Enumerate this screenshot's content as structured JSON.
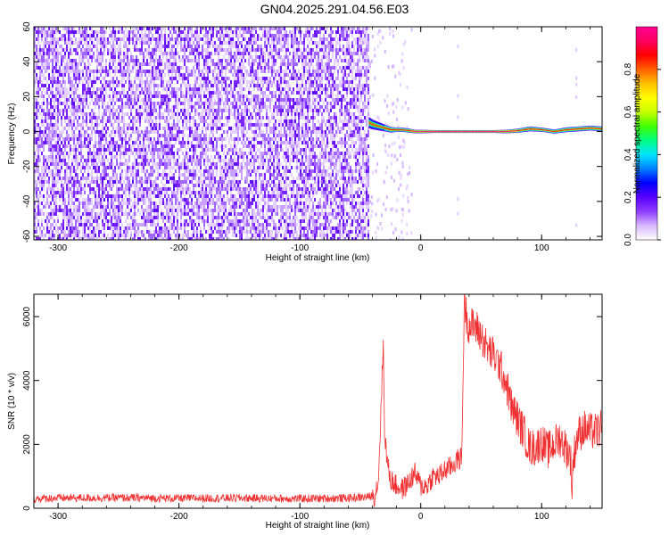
{
  "title": "GN04.2025.291.04.56.E03",
  "chart_data": [
    {
      "type": "heatmap",
      "xlabel": "Height of straight line (km)",
      "ylabel": "Frequency (Hz)",
      "xlim": [
        -320,
        150
      ],
      "ylim": [
        -62,
        60
      ],
      "x_ticks": [
        -300,
        -200,
        -100,
        0,
        100
      ],
      "y_ticks": [
        -60,
        -40,
        -20,
        0,
        20,
        40,
        60
      ],
      "noise_region_x": [
        -320,
        -43
      ],
      "signal_track": {
        "x": [
          -43,
          -40,
          -35,
          -30,
          -25,
          -20,
          -15,
          -10,
          -5,
          0,
          10,
          20,
          40,
          60,
          70,
          80,
          90,
          100,
          110,
          120,
          130,
          140,
          150
        ],
        "freq": [
          5,
          4,
          3,
          2,
          1,
          1,
          1,
          0.5,
          0,
          0,
          0,
          0,
          0,
          0,
          0,
          0.5,
          1.5,
          1,
          0,
          1,
          1.5,
          2,
          1.5
        ],
        "width_hz": [
          8,
          7,
          6,
          5,
          4,
          3,
          3,
          3,
          2.5,
          2.5,
          2,
          2,
          2,
          2,
          2.5,
          3,
          3.5,
          3,
          3,
          3.5,
          3.5,
          3.5,
          3.5
        ]
      },
      "colorbar": {
        "label": "Normalized spectral amplitude",
        "range": [
          0.0,
          1.0
        ],
        "ticks": [
          "0.0",
          "0.2",
          "0.4",
          "0.6",
          "0.8"
        ],
        "colors": [
          "#ffffff",
          "#d9b8ff",
          "#8f3dff",
          "#5a00ff",
          "#0000ff",
          "#0080ff",
          "#00e5ff",
          "#00ff80",
          "#40ff00",
          "#c8ff00",
          "#ffff00",
          "#ffc000",
          "#ff6000",
          "#ff0000",
          "#ff0060",
          "#ff0090"
        ]
      }
    },
    {
      "type": "line",
      "xlabel": "Height of straight line (km)",
      "ylabel": "SNR (10 * v/v)",
      "xlim": [
        -320,
        150
      ],
      "ylim": [
        0,
        6700
      ],
      "x_ticks": [
        -300,
        -200,
        -100,
        0,
        100
      ],
      "y_ticks": [
        0,
        2000,
        4000,
        6000
      ],
      "color": "#f03030",
      "series": [
        {
          "x": [
            -320,
            -300,
            -250,
            -200,
            -150,
            -100,
            -60,
            -45,
            -38,
            -35,
            -33,
            -31,
            -30,
            -28,
            -25,
            -20,
            -15,
            -10,
            -5,
            0,
            5,
            10,
            15,
            20,
            25,
            30,
            34,
            35,
            36,
            38,
            40,
            45,
            50,
            55,
            60,
            65,
            70,
            75,
            80,
            85,
            90,
            95,
            100,
            105,
            110,
            115,
            120,
            124,
            125,
            126,
            128,
            130,
            135,
            140,
            145,
            150
          ],
          "y": [
            300,
            320,
            330,
            310,
            320,
            300,
            320,
            350,
            400,
            900,
            3000,
            5200,
            2500,
            1500,
            900,
            700,
            600,
            800,
            1100,
            700,
            700,
            1000,
            1000,
            1200,
            1300,
            1500,
            1600,
            4200,
            6500,
            6000,
            5700,
            5700,
            5400,
            5000,
            4800,
            4500,
            4000,
            3200,
            2800,
            2400,
            1900,
            1900,
            2100,
            1800,
            2000,
            2200,
            1900,
            1600,
            500,
            1400,
            2000,
            2300,
            2500,
            2400,
            2400,
            2500
          ]
        }
      ]
    }
  ]
}
